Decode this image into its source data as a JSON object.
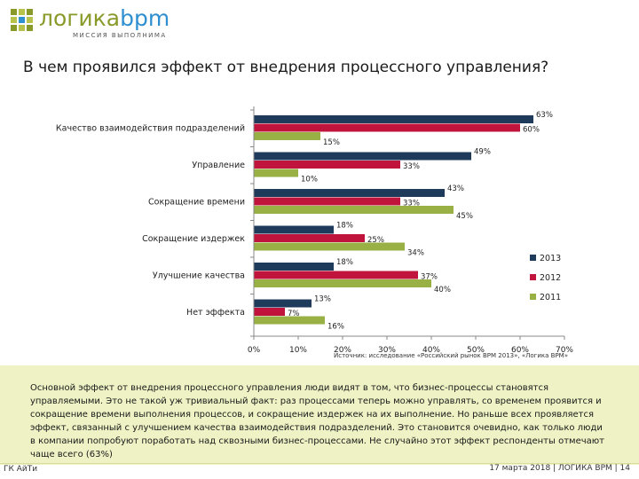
{
  "logo": {
    "name_part1": "логика",
    "name_part2": "bpm",
    "tagline": "МИССИЯ ВЫПОЛНИМА"
  },
  "title": "В чем проявился эффект от внедрения процессного управления?",
  "chart_data": {
    "type": "bar",
    "orientation": "horizontal",
    "categories": [
      "Качество взаимодействия подразделений",
      "Управление",
      "Сокращение времени",
      "Сокращение издержек",
      "Улучшение качества",
      "Нет эффекта"
    ],
    "series": [
      {
        "name": "2013",
        "color": "#1f3b5c",
        "values": [
          63,
          49,
          43,
          18,
          18,
          13
        ],
        "labels": [
          "63%",
          "49%",
          "43%",
          "18%",
          "18%",
          "13%"
        ]
      },
      {
        "name": "2012",
        "color": "#c0143c",
        "values": [
          60,
          33,
          33,
          25,
          37,
          7
        ],
        "labels": [
          "60%",
          "33%",
          "33%",
          "25%",
          "37%",
          "7%"
        ]
      },
      {
        "name": "2011",
        "color": "#98b044",
        "values": [
          15,
          10,
          45,
          34,
          40,
          16
        ],
        "labels": [
          "15%",
          "10%",
          "45%",
          "34%",
          "40%",
          "16%"
        ]
      }
    ],
    "xlim": [
      0,
      70
    ],
    "xticks": [
      "0%",
      "10%",
      "20%",
      "30%",
      "40%",
      "50%",
      "60%",
      "70%"
    ],
    "legend_position": "right"
  },
  "source": "Источник: исследование «Российский рынок BPM 2013», «Логика BPM»",
  "summary": "Основной эффект от внедрения процессного управления люди видят в том, что бизнес-процессы становятся управляемыми. Это не такой уж тривиальный факт: раз процессами теперь можно управлять, со временем проявится и сокращение времени выполнения процессов, и сокращение издержек на их выполнение. Но раньше всех проявляется эффект, связанный с улучшением качества взаимодействия подразделений. Это становится очевидно, как только люди в компании попробуют поработать над сквозными бизнес-процессами. Не случайно этот эффект респонденты отмечают чаще всего (63%)",
  "footer": {
    "left": "ГК АйТи",
    "right": "17 марта 2018  |  ЛОГИКА BPM  |  14"
  }
}
